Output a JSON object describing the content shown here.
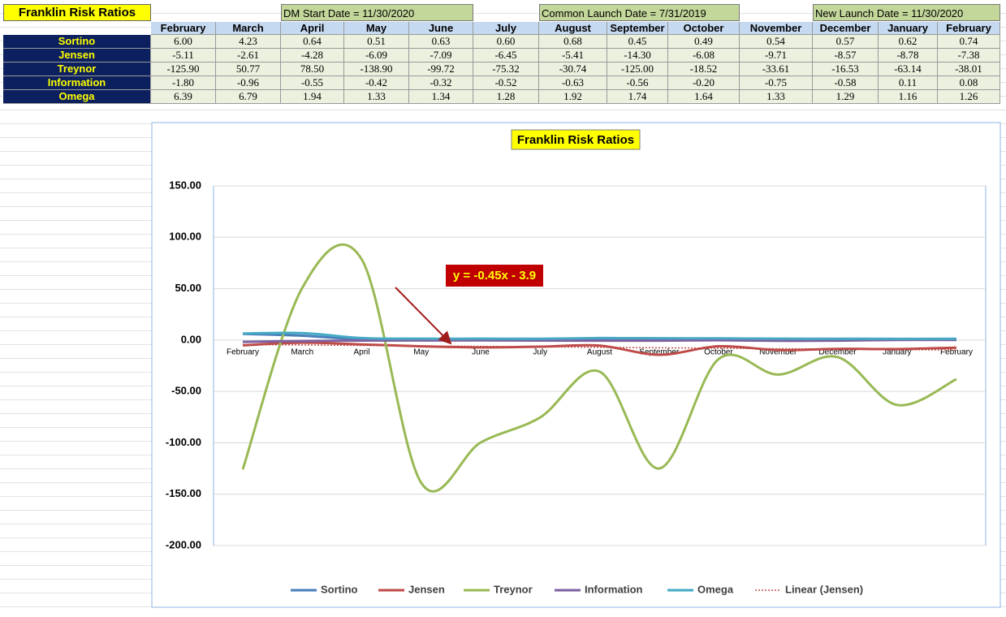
{
  "table": {
    "title": "Franklin Risk Ratios",
    "notes": [
      "DM Start Date = 11/30/2020",
      "Common Launch Date = 7/31/2019",
      "New Launch Date = 11/30/2020"
    ],
    "columns": [
      "February",
      "March",
      "April",
      "May",
      "June",
      "July",
      "August",
      "September",
      "October",
      "November",
      "December",
      "January",
      "February"
    ],
    "rows": [
      {
        "label": "Sortino",
        "values": [
          "6.00",
          "4.23",
          "0.64",
          "0.51",
          "0.63",
          "0.60",
          "0.68",
          "0.45",
          "0.49",
          "0.54",
          "0.57",
          "0.62",
          "0.74"
        ]
      },
      {
        "label": "Jensen",
        "values": [
          "-5.11",
          "-2.61",
          "-4.28",
          "-6.09",
          "-7.09",
          "-6.45",
          "-5.41",
          "-14.30",
          "-6.08",
          "-9.71",
          "-8.57",
          "-8.78",
          "-7.38"
        ]
      },
      {
        "label": "Treynor",
        "values": [
          "-125.90",
          "50.77",
          "78.50",
          "-138.90",
          "-99.72",
          "-75.32",
          "-30.74",
          "-125.00",
          "-18.52",
          "-33.61",
          "-16.53",
          "-63.14",
          "-38.01"
        ]
      },
      {
        "label": "Information",
        "values": [
          "-1.80",
          "-0.96",
          "-0.55",
          "-0.42",
          "-0.32",
          "-0.52",
          "-0.63",
          "-0.56",
          "-0.20",
          "-0.75",
          "-0.58",
          "0.11",
          "0.08"
        ]
      },
      {
        "label": "Omega",
        "values": [
          "6.39",
          "6.79",
          "1.94",
          "1.33",
          "1.34",
          "1.28",
          "1.92",
          "1.74",
          "1.64",
          "1.33",
          "1.29",
          "1.16",
          "1.26"
        ]
      }
    ]
  },
  "chart_data": {
    "type": "line",
    "title": "Franklin Risk Ratios",
    "categories": [
      "February",
      "March",
      "April",
      "May",
      "June",
      "July",
      "August",
      "September",
      "October",
      "November",
      "December",
      "January",
      "February"
    ],
    "series": [
      {
        "name": "Sortino",
        "color": "#4a7ebb",
        "values": [
          6.0,
          4.23,
          0.64,
          0.51,
          0.63,
          0.6,
          0.68,
          0.45,
          0.49,
          0.54,
          0.57,
          0.62,
          0.74
        ]
      },
      {
        "name": "Jensen",
        "color": "#be4b48",
        "values": [
          -5.11,
          -2.61,
          -4.28,
          -6.09,
          -7.09,
          -6.45,
          -5.41,
          -14.3,
          -6.08,
          -9.71,
          -8.57,
          -8.78,
          -7.38
        ]
      },
      {
        "name": "Treynor",
        "color": "#98b954",
        "values": [
          -125.9,
          50.77,
          78.5,
          -138.9,
          -99.72,
          -75.32,
          -30.74,
          -125.0,
          -18.52,
          -33.61,
          -16.53,
          -63.14,
          -38.01
        ]
      },
      {
        "name": "Information",
        "color": "#7d60a0",
        "values": [
          -1.8,
          -0.96,
          -0.55,
          -0.42,
          -0.32,
          -0.52,
          -0.63,
          -0.56,
          -0.2,
          -0.75,
          -0.58,
          0.11,
          0.08
        ]
      },
      {
        "name": "Omega",
        "color": "#46aac5",
        "values": [
          6.39,
          6.79,
          1.94,
          1.33,
          1.34,
          1.28,
          1.92,
          1.74,
          1.64,
          1.33,
          1.29,
          1.16,
          1.26
        ]
      }
    ],
    "trendline": {
      "name": "Linear (Jensen)",
      "color": "#c0504d",
      "slope": -0.45,
      "intercept": -3.9,
      "label": "y = -0.45x - 3.9"
    },
    "ylim": [
      -200,
      150
    ],
    "yticks": [
      {
        "value": -200,
        "label": "-200.00"
      },
      {
        "value": -150,
        "label": "-150.00"
      },
      {
        "value": -100,
        "label": "-100.00"
      },
      {
        "value": -50,
        "label": "-50.00"
      },
      {
        "value": 0,
        "label": "0.00"
      },
      {
        "value": 50,
        "label": "50.00"
      },
      {
        "value": 100,
        "label": "100.00"
      },
      {
        "value": 150,
        "label": "150.00"
      }
    ],
    "grid": true,
    "smooth": true,
    "legend": "bottom"
  }
}
